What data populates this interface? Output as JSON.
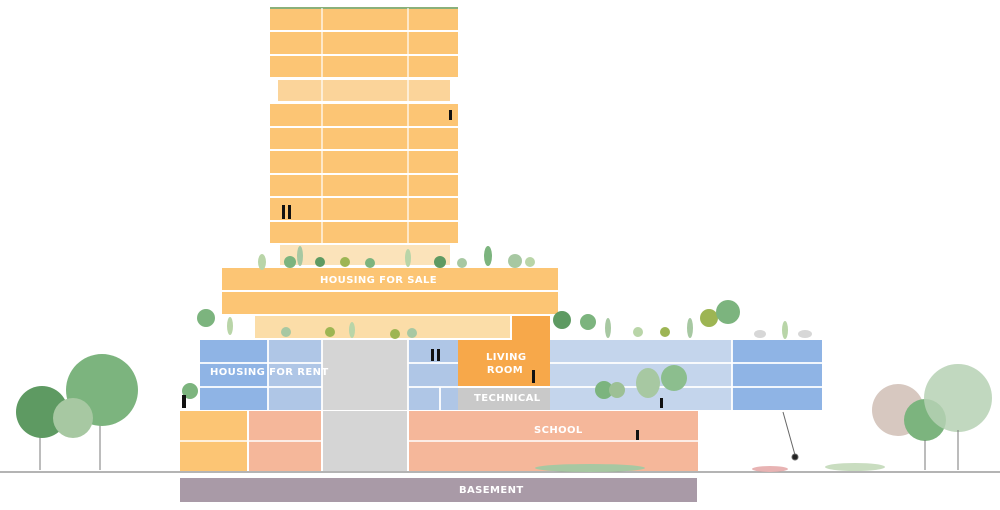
{
  "diagram": {
    "labels": {
      "housing_for_sale": "HOUSING FOR SALE",
      "housing_for_rent": "HOUSING FOR RENT",
      "living_room": "LIVING ROOM",
      "technical": "TECHNICAL",
      "school": "SCHOOL",
      "basement": "BASEMENT"
    },
    "colors": {
      "sale": "#FCC574",
      "sale_light": "#FBDDA8",
      "rent": "#8FB4E5",
      "rent_light": "#C4D5EC",
      "living_room": "#F7A84A",
      "technical": "#C9C9C9",
      "school": "#F5B79A",
      "gray_core": "#D5D5D5",
      "basement": "#A99AA7",
      "ground_line": "#9C9C9C",
      "trees": [
        "#5E9A62",
        "#7CB47E",
        "#A7C8A2",
        "#D7C8C0",
        "#9DB553"
      ]
    }
  }
}
